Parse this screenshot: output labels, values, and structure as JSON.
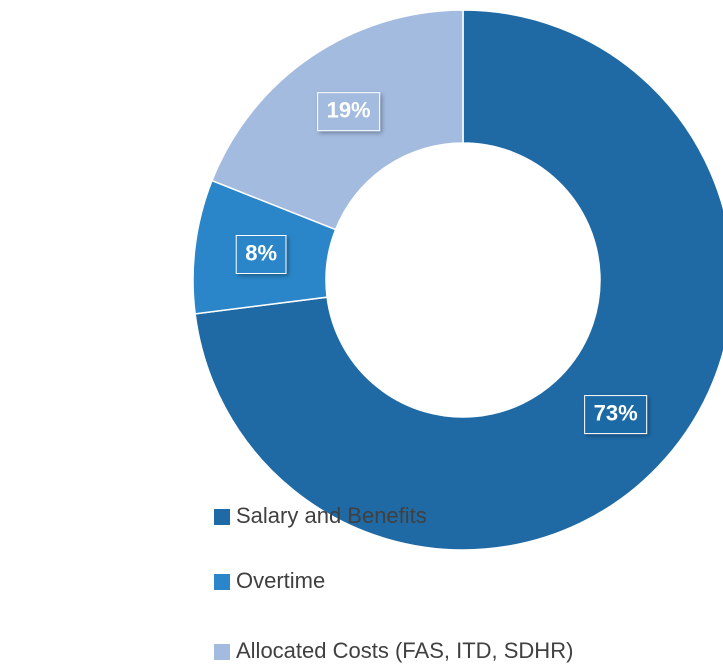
{
  "chart_data": {
    "type": "donut",
    "categories": [
      "Salary and Benefits",
      "Overtime",
      "Allocated Costs (FAS, ITD, SDHR)"
    ],
    "values": [
      73,
      8,
      19
    ],
    "value_labels": [
      "73%",
      "8%",
      "19%"
    ],
    "colors": [
      "#1f6aa5",
      "#2a86c8",
      "#a3bbdf"
    ],
    "legend": "bottom-left"
  }
}
